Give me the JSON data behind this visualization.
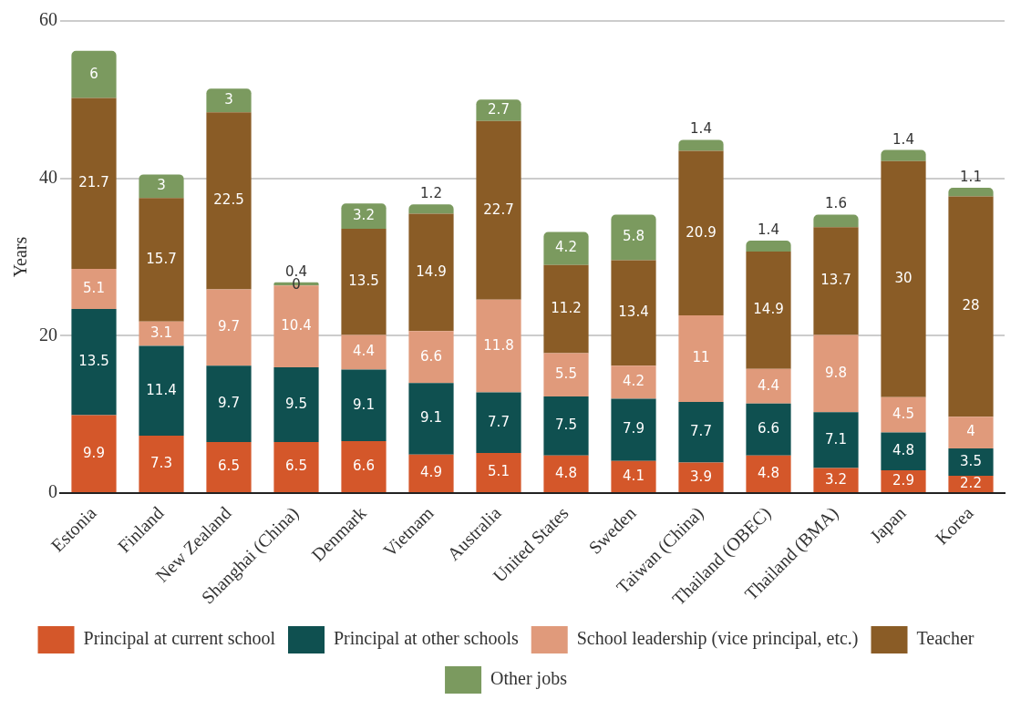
{
  "chart_data": {
    "type": "bar",
    "stacked": true,
    "ylabel": "Years",
    "categories": [
      "Estonia",
      "Finland",
      "New Zealand",
      "Shanghai (China)",
      "Denmark",
      "Vietnam",
      "Australia",
      "United States",
      "Sweden",
      "Taiwan (China)",
      "Thailand (OBEC)",
      "Thailand (BMA)",
      "Japan",
      "Korea"
    ],
    "series": [
      {
        "name": "Principal at current school",
        "color": "#d4572a",
        "values": [
          9.9,
          7.3,
          6.5,
          6.5,
          6.6,
          4.9,
          5.1,
          4.8,
          4.1,
          3.9,
          4.8,
          3.2,
          2.9,
          2.2
        ]
      },
      {
        "name": "Principal at other schools",
        "color": "#0f5050",
        "values": [
          13.5,
          11.4,
          9.7,
          9.5,
          9.1,
          9.1,
          7.7,
          7.5,
          7.9,
          7.7,
          6.6,
          7.1,
          4.8,
          3.5
        ]
      },
      {
        "name": "School leadership (vice principal, etc.)",
        "color": "#e09a7b",
        "values": [
          5.1,
          3.1,
          9.7,
          10.4,
          4.4,
          6.6,
          11.8,
          5.5,
          4.2,
          11,
          4.4,
          9.8,
          4.5,
          4
        ]
      },
      {
        "name": "Teacher",
        "color": "#8a5c26",
        "values": [
          21.7,
          15.7,
          22.5,
          0,
          13.5,
          14.9,
          22.7,
          11.2,
          13.4,
          20.9,
          14.9,
          13.7,
          30,
          28
        ]
      },
      {
        "name": "Other jobs",
        "color": "#7b9a5f",
        "values": [
          6,
          3,
          3,
          0.4,
          3.2,
          1.2,
          2.7,
          4.2,
          5.8,
          1.4,
          1.4,
          1.6,
          1.4,
          1.1
        ]
      }
    ],
    "ylim": [
      0,
      60
    ],
    "yticks": [
      0,
      20,
      40,
      60
    ],
    "grid": "y",
    "legend": "bottom",
    "data_labels": true
  }
}
